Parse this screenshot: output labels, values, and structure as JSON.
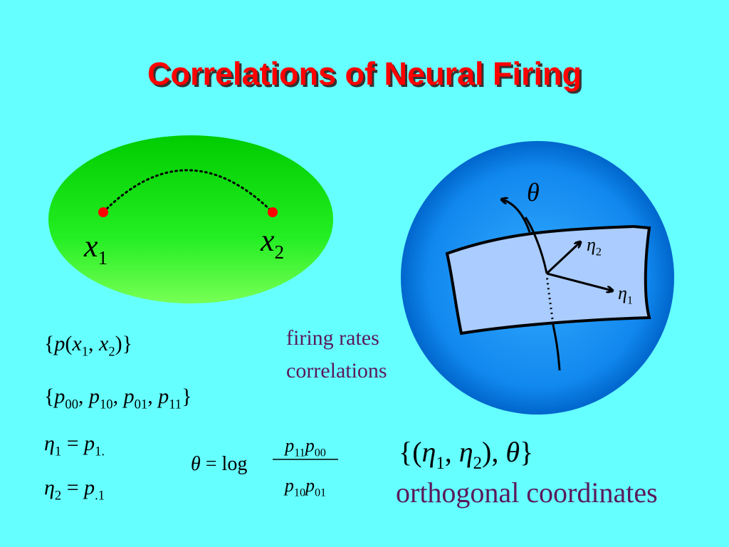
{
  "title": "Correlations of Neural Firing",
  "ellipse_labels": [
    [
      "x",
      {
        "sub": "1"
      }
    ],
    [
      "x",
      {
        "sub": "2"
      }
    ]
  ],
  "sphere_labels": {
    "theta": [
      "θ"
    ],
    "eta2": [
      "η",
      {
        "sub": "2"
      }
    ],
    "eta1": [
      "η",
      {
        "sub": "1"
      }
    ]
  },
  "text_lines": [
    "firing rates",
    "correlations"
  ],
  "formulas": [
    [
      "{",
      "p",
      "(",
      "x",
      {
        "sub": "1"
      },
      ", ",
      "x",
      {
        "sub": "2"
      },
      ")",
      "}"
    ],
    [
      "{",
      "p",
      {
        "sub": "00"
      },
      ", ",
      "p",
      {
        "sub": "10"
      },
      ", ",
      "p",
      {
        "sub": "01"
      },
      ", ",
      "p",
      {
        "sub": "11"
      },
      "}"
    ],
    [
      "η",
      {
        "sub": "1"
      },
      " = ",
      "p",
      {
        "sub": "1."
      }
    ],
    [
      "η",
      {
        "sub": "2"
      },
      " = ",
      "p",
      {
        "sub": ".1"
      }
    ]
  ],
  "theta_formula": {
    "lhs": [
      "θ",
      " = log"
    ],
    "num": [
      "p",
      {
        "sub": "11"
      },
      "p",
      {
        "sub": "00"
      }
    ],
    "den": [
      "p",
      {
        "sub": "10"
      },
      "p",
      {
        "sub": "01"
      }
    ]
  },
  "coordinate_set": [
    "{(",
    "η",
    {
      "sub": "1"
    },
    ", ",
    "η",
    {
      "sub": "2"
    },
    "), ",
    "θ",
    "}"
  ],
  "caption": "orthogonal coordinates"
}
